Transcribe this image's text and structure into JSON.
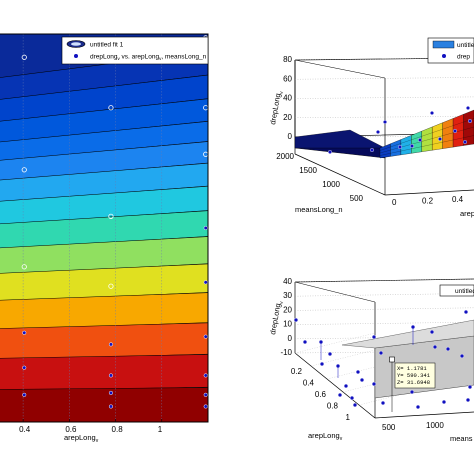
{
  "chart_data": [
    {
      "type": "contour",
      "panel": "left",
      "x_ticks": [
        "0.4",
        "0.6",
        "0.8",
        "1"
      ],
      "x_tick_values": [
        0.4,
        0.6,
        0.8,
        1.0
      ],
      "xlim": [
        0.3,
        1.2
      ],
      "xlabel": "arepLong",
      "xlabel_sub": "v",
      "legend": {
        "fit_label": "untitled fit 1",
        "data_label_prefix": "drepLong",
        "data_label_sub1": "v",
        "data_label_mid": " vs. arepLong",
        "data_label_sub2": "v",
        "data_label_suffix": ", meansLong_n"
      },
      "colors": [
        "#0a2a9a",
        "#0634b4",
        "#0044cc",
        "#0058dc",
        "#0a6ce8",
        "#1c84f0",
        "#22a8f0",
        "#20c8e0",
        "#30d8b0",
        "#90e060",
        "#e0e020",
        "#f8a800",
        "#f05010",
        "#c81010",
        "#900000"
      ],
      "points": [
        {
          "x": 0.405,
          "y": 0.06,
          "hollow": true
        },
        {
          "x": 0.78,
          "y": 0.19,
          "hollow": true
        },
        {
          "x": 1.19,
          "y": 0.01,
          "hollow": true
        },
        {
          "x": 1.19,
          "y": 0.19,
          "hollow": true
        },
        {
          "x": 1.19,
          "y": 0.31,
          "hollow": true
        },
        {
          "x": 0.405,
          "y": 0.35,
          "hollow": true
        },
        {
          "x": 0.78,
          "y": 0.47,
          "hollow": true
        },
        {
          "x": 1.19,
          "y": 0.5,
          "hollow": false
        },
        {
          "x": 0.405,
          "y": 0.6,
          "hollow": true
        },
        {
          "x": 0.78,
          "y": 0.65,
          "hollow": true
        },
        {
          "x": 1.19,
          "y": 0.64,
          "hollow": false
        },
        {
          "x": 0.405,
          "y": 0.77,
          "hollow": false
        },
        {
          "x": 0.78,
          "y": 0.8,
          "hollow": false
        },
        {
          "x": 1.19,
          "y": 0.78,
          "hollow": false
        },
        {
          "x": 0.405,
          "y": 0.86,
          "hollow": false
        },
        {
          "x": 0.78,
          "y": 0.88,
          "hollow": false
        },
        {
          "x": 1.19,
          "y": 0.88,
          "hollow": false
        },
        {
          "x": 0.405,
          "y": 0.93,
          "hollow": false
        },
        {
          "x": 0.78,
          "y": 0.925,
          "hollow": false
        },
        {
          "x": 1.19,
          "y": 0.93,
          "hollow": false
        },
        {
          "x": 0.78,
          "y": 0.96,
          "hollow": false
        },
        {
          "x": 1.19,
          "y": 0.96,
          "hollow": false
        }
      ]
    },
    {
      "type": "surface3d",
      "panel": "top-right",
      "z_ticks": [
        "80",
        "60",
        "40",
        "20",
        "0"
      ],
      "zlabel": "drepLong",
      "zlabel_sub": "v",
      "y_ticks": [
        "2000",
        "1500",
        "1000",
        "500"
      ],
      "ylabel": "meansLong_n",
      "x_ticks": [
        "0",
        "0.2",
        "0.4"
      ],
      "xlabel": "arep",
      "legend": {
        "fit_label": "untitled",
        "data_label": "drep"
      }
    },
    {
      "type": "scatter3d",
      "panel": "bottom-right",
      "z_ticks": [
        "40",
        "30",
        "20",
        "10",
        "0",
        "-10"
      ],
      "zlabel": "drepLong",
      "zlabel_sub": "v",
      "x_ticks": [
        "0.2",
        "0.4",
        "0.6",
        "0.8",
        "1"
      ],
      "xlabel": "arepLong",
      "xlabel_sub": "v",
      "y_ticks": [
        "500",
        "1000"
      ],
      "ylabel": "means",
      "legend": {
        "fit_label": "untitled"
      },
      "datatip": {
        "x": "X= 1.1781",
        "y": "Y= 590.341",
        "z": "Z= 31.6948"
      }
    }
  ]
}
